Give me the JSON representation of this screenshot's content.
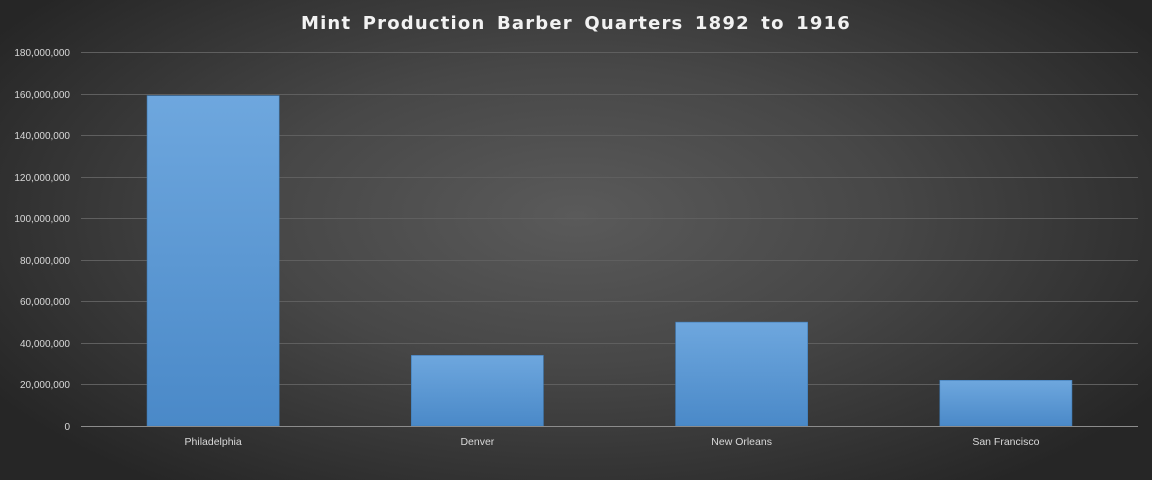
{
  "chart_data": {
    "type": "bar",
    "title": "Mint Production  Barber  Quarters  1892 to 1916",
    "xlabel": "",
    "ylabel": "",
    "categories": [
      "Philadelphia",
      "Denver",
      "New Orleans",
      "San Francisco"
    ],
    "values": [
      159000000,
      34000000,
      50000000,
      22000000
    ],
    "ylim": [
      0,
      180000000
    ],
    "yticks": [
      0,
      20000000,
      40000000,
      60000000,
      80000000,
      100000000,
      120000000,
      140000000,
      160000000,
      180000000
    ],
    "ytick_labels": [
      "0",
      "20,000,000",
      "40,000,000",
      "60,000,000",
      "80,000,000",
      "100,000,000",
      "120,000,000",
      "140,000,000",
      "160,000,000",
      "180,000,000"
    ],
    "grid": true,
    "legend": "none",
    "bar_color": "#5b9bd5",
    "bar_color_light": "#6ea7de",
    "bar_color_dark": "#4a89c8"
  }
}
